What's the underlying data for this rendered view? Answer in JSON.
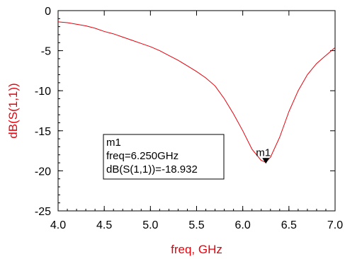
{
  "chart_data": {
    "type": "line",
    "xlabel": "freq, GHz",
    "ylabel": "dB(S(1,1))",
    "xlim": [
      4.0,
      7.0
    ],
    "ylim": [
      -25,
      0
    ],
    "x_ticks": [
      "4.0",
      "4.5",
      "5.0",
      "5.5",
      "6.0",
      "6.5",
      "7.0"
    ],
    "y_ticks": [
      "0",
      "-5",
      "-10",
      "-15",
      "-20",
      "-25"
    ],
    "grid": false,
    "line_color": "#e8000b",
    "series": [
      {
        "x": [
          4.0,
          4.1,
          4.2,
          4.3,
          4.4,
          4.5,
          4.6,
          4.7,
          4.8,
          4.9,
          5.0,
          5.1,
          5.2,
          5.3,
          5.4,
          5.5,
          5.6,
          5.7,
          5.8,
          5.9,
          6.0,
          6.1,
          6.2,
          6.25,
          6.3,
          6.4,
          6.5,
          6.6,
          6.7,
          6.8,
          6.9,
          7.0
        ],
        "values": [
          -1.4,
          -1.5,
          -1.7,
          -1.9,
          -2.2,
          -2.6,
          -2.9,
          -3.3,
          -3.7,
          -4.1,
          -4.5,
          -5.0,
          -5.6,
          -6.2,
          -6.9,
          -7.6,
          -8.4,
          -9.4,
          -11.0,
          -12.9,
          -15.0,
          -17.3,
          -18.7,
          -18.93,
          -18.3,
          -15.8,
          -12.6,
          -10.0,
          -8.0,
          -6.6,
          -5.6,
          -4.6
        ]
      }
    ],
    "marker": {
      "name": "m1",
      "x": 6.25,
      "y": -18.932,
      "lines": [
        "m1",
        "freq=6.250GHz",
        "dB(S(1,1))=-18.932"
      ]
    }
  }
}
